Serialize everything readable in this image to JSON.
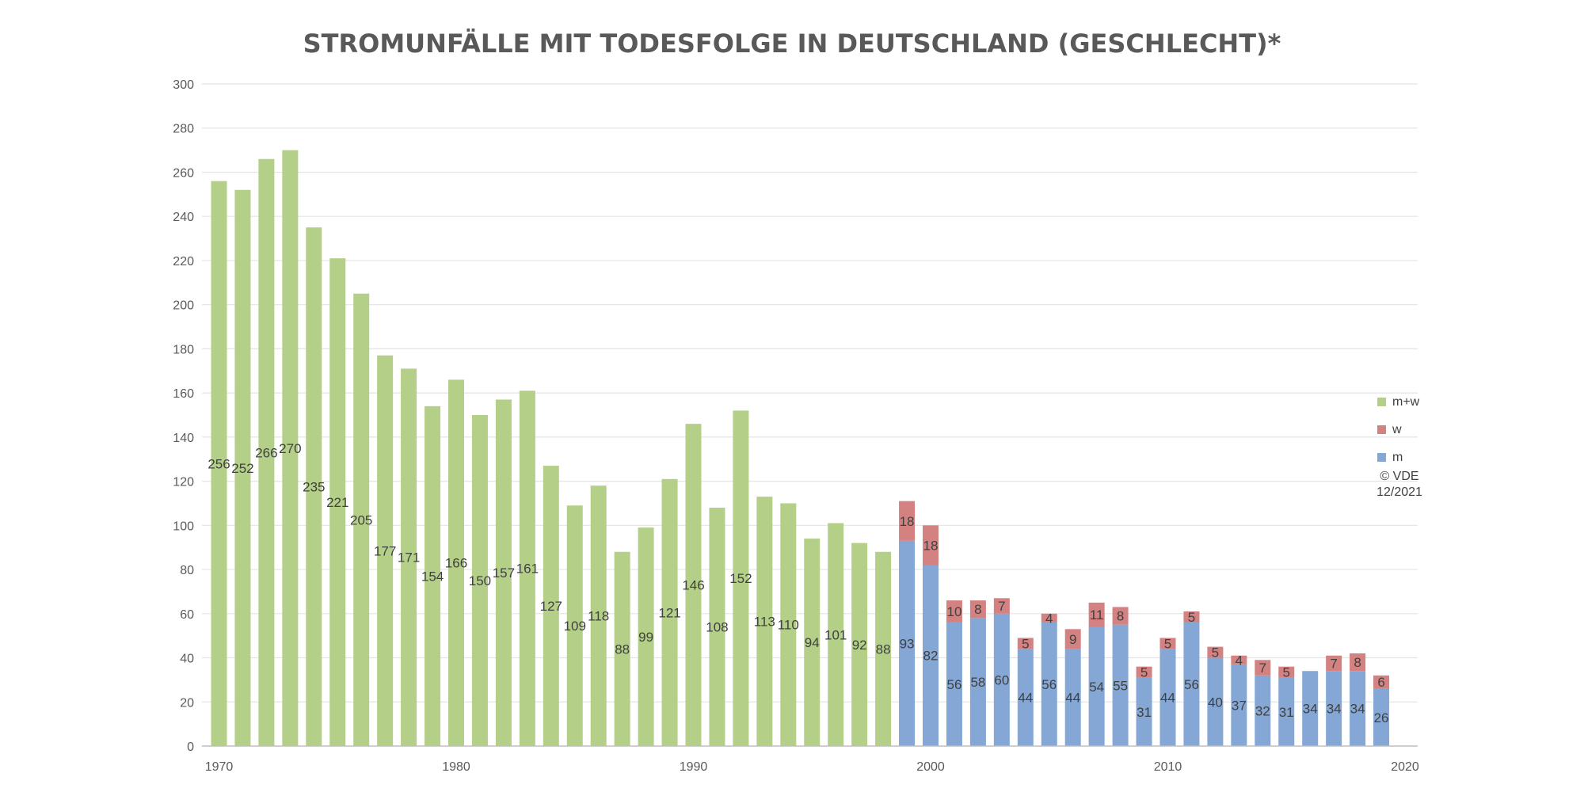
{
  "chart_data": {
    "type": "bar",
    "stacked": true,
    "title": "STROMUNFÄLLE MIT TODESFOLGE IN DEUTSCHLAND (GESCHLECHT)*",
    "x": [
      1970,
      1971,
      1972,
      1973,
      1974,
      1975,
      1976,
      1977,
      1978,
      1979,
      1980,
      1981,
      1982,
      1983,
      1984,
      1985,
      1986,
      1987,
      1988,
      1989,
      1990,
      1991,
      1992,
      1993,
      1994,
      1995,
      1996,
      1997,
      1998,
      1999,
      2000,
      2001,
      2002,
      2003,
      2004,
      2005,
      2006,
      2007,
      2008,
      2009,
      2010,
      2011,
      2012,
      2013,
      2014,
      2015,
      2016,
      2017,
      2018,
      2019
    ],
    "x_ticks": [
      "1970",
      "1980",
      "1990",
      "2000",
      "2010",
      "2020"
    ],
    "xlim": [
      1970,
      2020
    ],
    "ylim": [
      0,
      300
    ],
    "y_ticks": [
      "0",
      "20",
      "40",
      "60",
      "80",
      "100",
      "120",
      "140",
      "160",
      "180",
      "200",
      "220",
      "240",
      "260",
      "280",
      "300"
    ],
    "grid": true,
    "legend_position": "right",
    "series": [
      {
        "name": "m+w",
        "color": "#b4cf87",
        "values": [
          256,
          252,
          266,
          270,
          235,
          221,
          205,
          177,
          171,
          154,
          166,
          150,
          157,
          161,
          127,
          109,
          118,
          88,
          99,
          121,
          146,
          108,
          152,
          113,
          110,
          94,
          101,
          92,
          88,
          null,
          null,
          null,
          null,
          null,
          null,
          null,
          null,
          null,
          null,
          null,
          null,
          null,
          null,
          null,
          null,
          null,
          null,
          null,
          null,
          null
        ]
      },
      {
        "name": "m",
        "color": "#84a7d6",
        "values": [
          null,
          null,
          null,
          null,
          null,
          null,
          null,
          null,
          null,
          null,
          null,
          null,
          null,
          null,
          null,
          null,
          null,
          null,
          null,
          null,
          null,
          null,
          null,
          null,
          null,
          null,
          null,
          null,
          null,
          93,
          82,
          56,
          58,
          60,
          44,
          56,
          44,
          54,
          55,
          31,
          44,
          56,
          40,
          37,
          32,
          31,
          34,
          34,
          34,
          26
        ]
      },
      {
        "name": "w",
        "color": "#d38281",
        "values": [
          null,
          null,
          null,
          null,
          null,
          null,
          null,
          null,
          null,
          null,
          null,
          null,
          null,
          null,
          null,
          null,
          null,
          null,
          null,
          null,
          null,
          null,
          null,
          null,
          null,
          null,
          null,
          null,
          null,
          18,
          18,
          10,
          8,
          7,
          5,
          4,
          9,
          11,
          8,
          5,
          5,
          5,
          5,
          4,
          7,
          5,
          null,
          7,
          8,
          6
        ]
      }
    ]
  },
  "legend": [
    {
      "label": "m+w",
      "color": "#b4cf87"
    },
    {
      "label": "w",
      "color": "#d38281"
    },
    {
      "label": "m",
      "color": "#84a7d6"
    }
  ],
  "copyright": {
    "line1": "© VDE",
    "line2": "12/2021"
  }
}
